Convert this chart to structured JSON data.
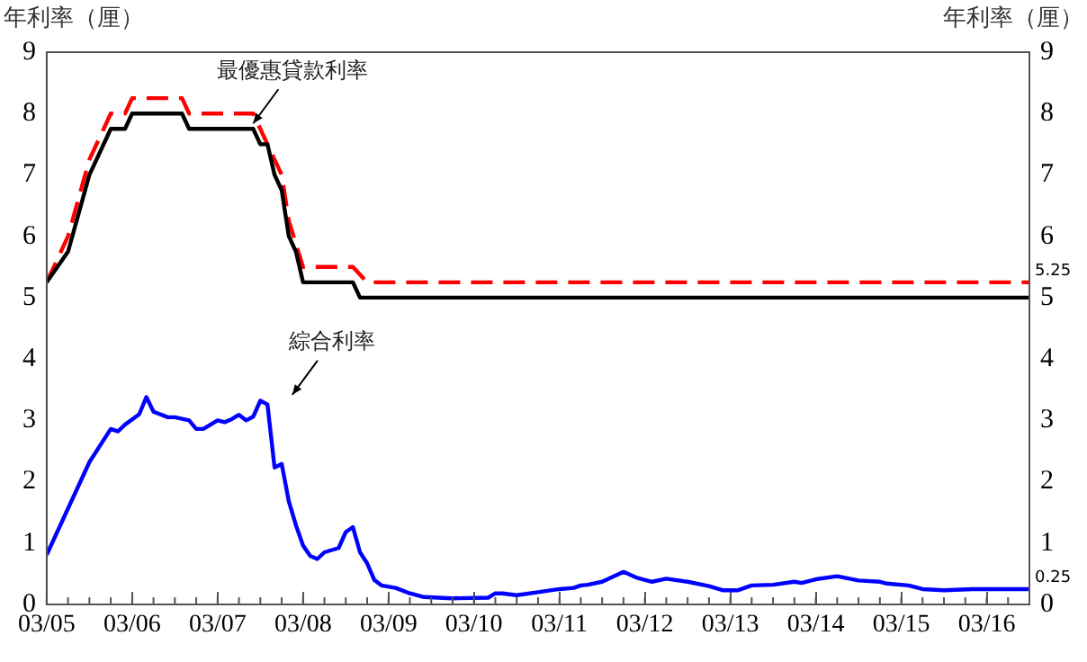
{
  "chart_data": {
    "type": "line",
    "ylabel": "年利率（厘）",
    "y2label": "年利率（厘）",
    "xlim": [
      "2005-03",
      "2016-09"
    ],
    "xticks": [
      {
        "value": "2005-03",
        "label": "03/05"
      },
      {
        "value": "2006-03",
        "label": "03/06"
      },
      {
        "value": "2007-03",
        "label": "03/07"
      },
      {
        "value": "2008-03",
        "label": "03/08"
      },
      {
        "value": "2009-03",
        "label": "03/09"
      },
      {
        "value": "2010-03",
        "label": "03/10"
      },
      {
        "value": "2011-03",
        "label": "03/11"
      },
      {
        "value": "2012-03",
        "label": "03/12"
      },
      {
        "value": "2013-03",
        "label": "03/13"
      },
      {
        "value": "2014-03",
        "label": "03/14"
      },
      {
        "value": "2015-03",
        "label": "03/15"
      },
      {
        "value": "2016-03",
        "label": "03/16"
      }
    ],
    "ylim": [
      0,
      9
    ],
    "yticks": [
      0,
      1,
      2,
      3,
      4,
      5,
      6,
      7,
      8,
      9
    ],
    "y2lim": [
      0,
      9
    ],
    "y2ticks": [
      0,
      1,
      2,
      3,
      4,
      5,
      6,
      7,
      8,
      9
    ],
    "grid": false,
    "legend": false,
    "marker": "none",
    "series": [
      {
        "color": "#000000",
        "line_style": "solid",
        "x": [
          "2005-03",
          "2005-06",
          "2005-09",
          "2005-12",
          "2006-02",
          "2006-03",
          "2006-10",
          "2006-11",
          "2007-08",
          "2007-09",
          "2007-10",
          "2007-11",
          "2007-12",
          "2008-01",
          "2008-02",
          "2008-03",
          "2008-10",
          "2008-11",
          "2016-09"
        ],
        "values": [
          5.25,
          5.75,
          7.0,
          7.75,
          7.75,
          8.0,
          8.0,
          7.75,
          7.75,
          7.5,
          7.5,
          7.0,
          6.75,
          6.0,
          5.75,
          5.25,
          5.25,
          5.0,
          5.0
        ]
      },
      {
        "color": "#ff0000",
        "line_style": "dashed",
        "x": [
          "2005-03",
          "2005-06",
          "2005-09",
          "2005-12",
          "2006-02",
          "2006-03",
          "2006-10",
          "2006-11",
          "2007-08",
          "2007-10",
          "2007-12",
          "2008-01",
          "2008-03",
          "2008-10",
          "2008-12",
          "2016-09"
        ],
        "values": [
          5.25,
          6.0,
          7.25,
          8.0,
          8.0,
          8.25,
          8.25,
          8.0,
          8.0,
          7.5,
          7.0,
          6.25,
          5.5,
          5.5,
          5.25,
          5.25
        ]
      },
      {
        "color": "#0000ff",
        "line_style": "solid",
        "x": [
          "2005-03",
          "2005-09",
          "2005-12",
          "2006-01",
          "2006-02",
          "2006-04",
          "2006-05",
          "2006-06",
          "2006-08",
          "2006-09",
          "2006-11",
          "2006-12",
          "2007-01",
          "2007-03",
          "2007-04",
          "2007-05",
          "2007-06",
          "2007-07",
          "2007-08",
          "2007-09",
          "2007-10",
          "2007-11",
          "2007-12",
          "2008-01",
          "2008-02",
          "2008-03",
          "2008-04",
          "2008-05",
          "2008-06",
          "2008-08",
          "2008-09",
          "2008-10",
          "2008-11",
          "2008-12",
          "2009-01",
          "2009-02",
          "2009-04",
          "2009-06",
          "2009-08",
          "2009-12",
          "2010-05",
          "2010-06",
          "2010-07",
          "2010-09",
          "2010-12",
          "2011-03",
          "2011-05",
          "2011-06",
          "2011-07",
          "2011-09",
          "2011-12",
          "2012-02",
          "2012-04",
          "2012-06",
          "2012-09",
          "2012-12",
          "2013-02",
          "2013-04",
          "2013-06",
          "2013-09",
          "2013-12",
          "2014-01",
          "2014-03",
          "2014-06",
          "2014-09",
          "2014-12",
          "2015-01",
          "2015-04",
          "2015-06",
          "2015-09",
          "2016-01",
          "2016-05",
          "2016-09"
        ],
        "values": [
          0.81,
          2.32,
          2.86,
          2.82,
          2.93,
          3.1,
          3.38,
          3.14,
          3.05,
          3.05,
          3.0,
          2.86,
          2.86,
          3.0,
          2.97,
          3.02,
          3.09,
          3.0,
          3.06,
          3.32,
          3.26,
          2.23,
          2.29,
          1.68,
          1.29,
          0.96,
          0.79,
          0.74,
          0.85,
          0.92,
          1.18,
          1.26,
          0.85,
          0.67,
          0.4,
          0.31,
          0.27,
          0.18,
          0.12,
          0.1,
          0.11,
          0.18,
          0.18,
          0.15,
          0.2,
          0.25,
          0.27,
          0.31,
          0.32,
          0.37,
          0.53,
          0.43,
          0.37,
          0.42,
          0.37,
          0.3,
          0.23,
          0.23,
          0.31,
          0.32,
          0.37,
          0.35,
          0.41,
          0.46,
          0.39,
          0.37,
          0.34,
          0.31,
          0.25,
          0.23,
          0.25,
          0.25,
          0.25
        ]
      }
    ],
    "annotations": [
      {
        "text": "最優惠貸款利率",
        "x": "2007-08",
        "y": 7.75
      },
      "綜合利率",
      {
        "text": "5.25",
        "x": "2016-09",
        "y": 5.25
      },
      {
        "text": "0.25",
        "x": "2016-09",
        "y": 0.25
      }
    ]
  }
}
